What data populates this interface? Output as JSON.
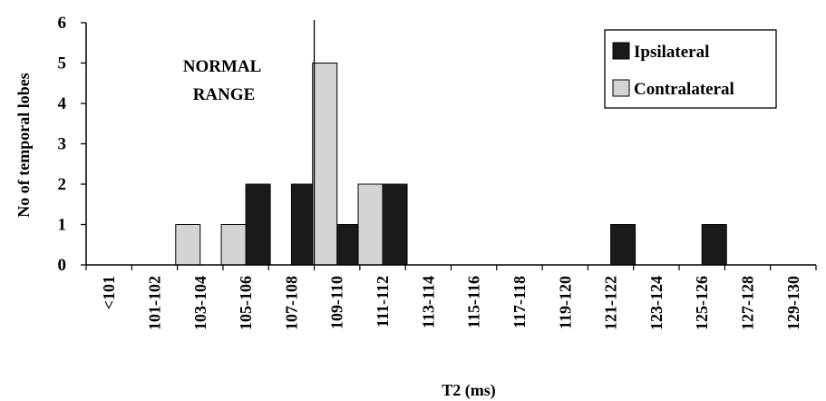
{
  "chart_data": {
    "type": "bar",
    "xlabel": "T2 (ms)",
    "ylabel": "No of temporal lobes",
    "ylim": [
      0,
      6
    ],
    "yticks": [
      "0",
      "1",
      "2",
      "3",
      "4",
      "5",
      "6"
    ],
    "categories": [
      "<101",
      "101-102",
      "103-104",
      "105-106",
      "107-108",
      "109-110",
      "111-112",
      "113-114",
      "115-116",
      "117-118",
      "119-120",
      "121-122",
      "123-124",
      "125-126",
      "127-128",
      "129-130"
    ],
    "series": [
      {
        "name": "Ipsilateral",
        "color": "#1a1a1a",
        "values": [
          0,
          0,
          0,
          2,
          2,
          1,
          2,
          0,
          0,
          0,
          0,
          1,
          0,
          1,
          0,
          0
        ]
      },
      {
        "name": "Contralateral",
        "color": "#d4d4d4",
        "values": [
          0,
          0,
          1,
          1,
          0,
          5,
          2,
          0,
          0,
          0,
          0,
          0,
          0,
          0,
          0,
          0
        ]
      }
    ],
    "annotation": {
      "line1": "NORMAL",
      "line2": "RANGE"
    },
    "legend_position": "top-right",
    "grid": false
  }
}
